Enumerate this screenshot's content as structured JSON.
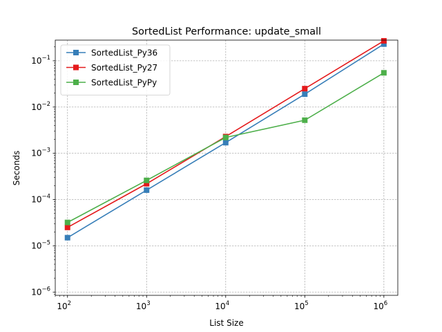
{
  "chart_data": {
    "type": "line",
    "title": "SortedList Performance: update_small",
    "xlabel": "List Size",
    "ylabel": "Seconds",
    "xscale": "log",
    "yscale": "log",
    "xlim": [
      70,
      1500000
    ],
    "ylim": [
      8.5e-07,
      0.28
    ],
    "grid": true,
    "legend_position": "top-left",
    "x": [
      100,
      1000,
      10000,
      100000,
      1000000
    ],
    "x_ticks": [
      {
        "value": 100,
        "base": "10",
        "exp": "2"
      },
      {
        "value": 1000,
        "base": "10",
        "exp": "3"
      },
      {
        "value": 10000,
        "base": "10",
        "exp": "4"
      },
      {
        "value": 100000,
        "base": "10",
        "exp": "5"
      },
      {
        "value": 1000000,
        "base": "10",
        "exp": "6"
      }
    ],
    "y_ticks": [
      {
        "value": 1e-06,
        "base": "10",
        "exp": "−6"
      },
      {
        "value": 1e-05,
        "base": "10",
        "exp": "−5"
      },
      {
        "value": 0.0001,
        "base": "10",
        "exp": "−4"
      },
      {
        "value": 0.001,
        "base": "10",
        "exp": "−3"
      },
      {
        "value": 0.01,
        "base": "10",
        "exp": "−2"
      },
      {
        "value": 0.1,
        "base": "10",
        "exp": "−1"
      }
    ],
    "series": [
      {
        "name": "SortedList_Py36",
        "color": "#377eb8",
        "values": [
          1.5e-05,
          0.00016,
          0.0017,
          0.019,
          0.23
        ]
      },
      {
        "name": "SortedList_Py27",
        "color": "#e41a1c",
        "values": [
          2.5e-05,
          0.00022,
          0.0023,
          0.025,
          0.27
        ]
      },
      {
        "name": "SortedList_PyPy",
        "color": "#4daf4a",
        "values": [
          3.2e-05,
          0.00026,
          0.0022,
          0.0052,
          0.055
        ]
      }
    ]
  }
}
